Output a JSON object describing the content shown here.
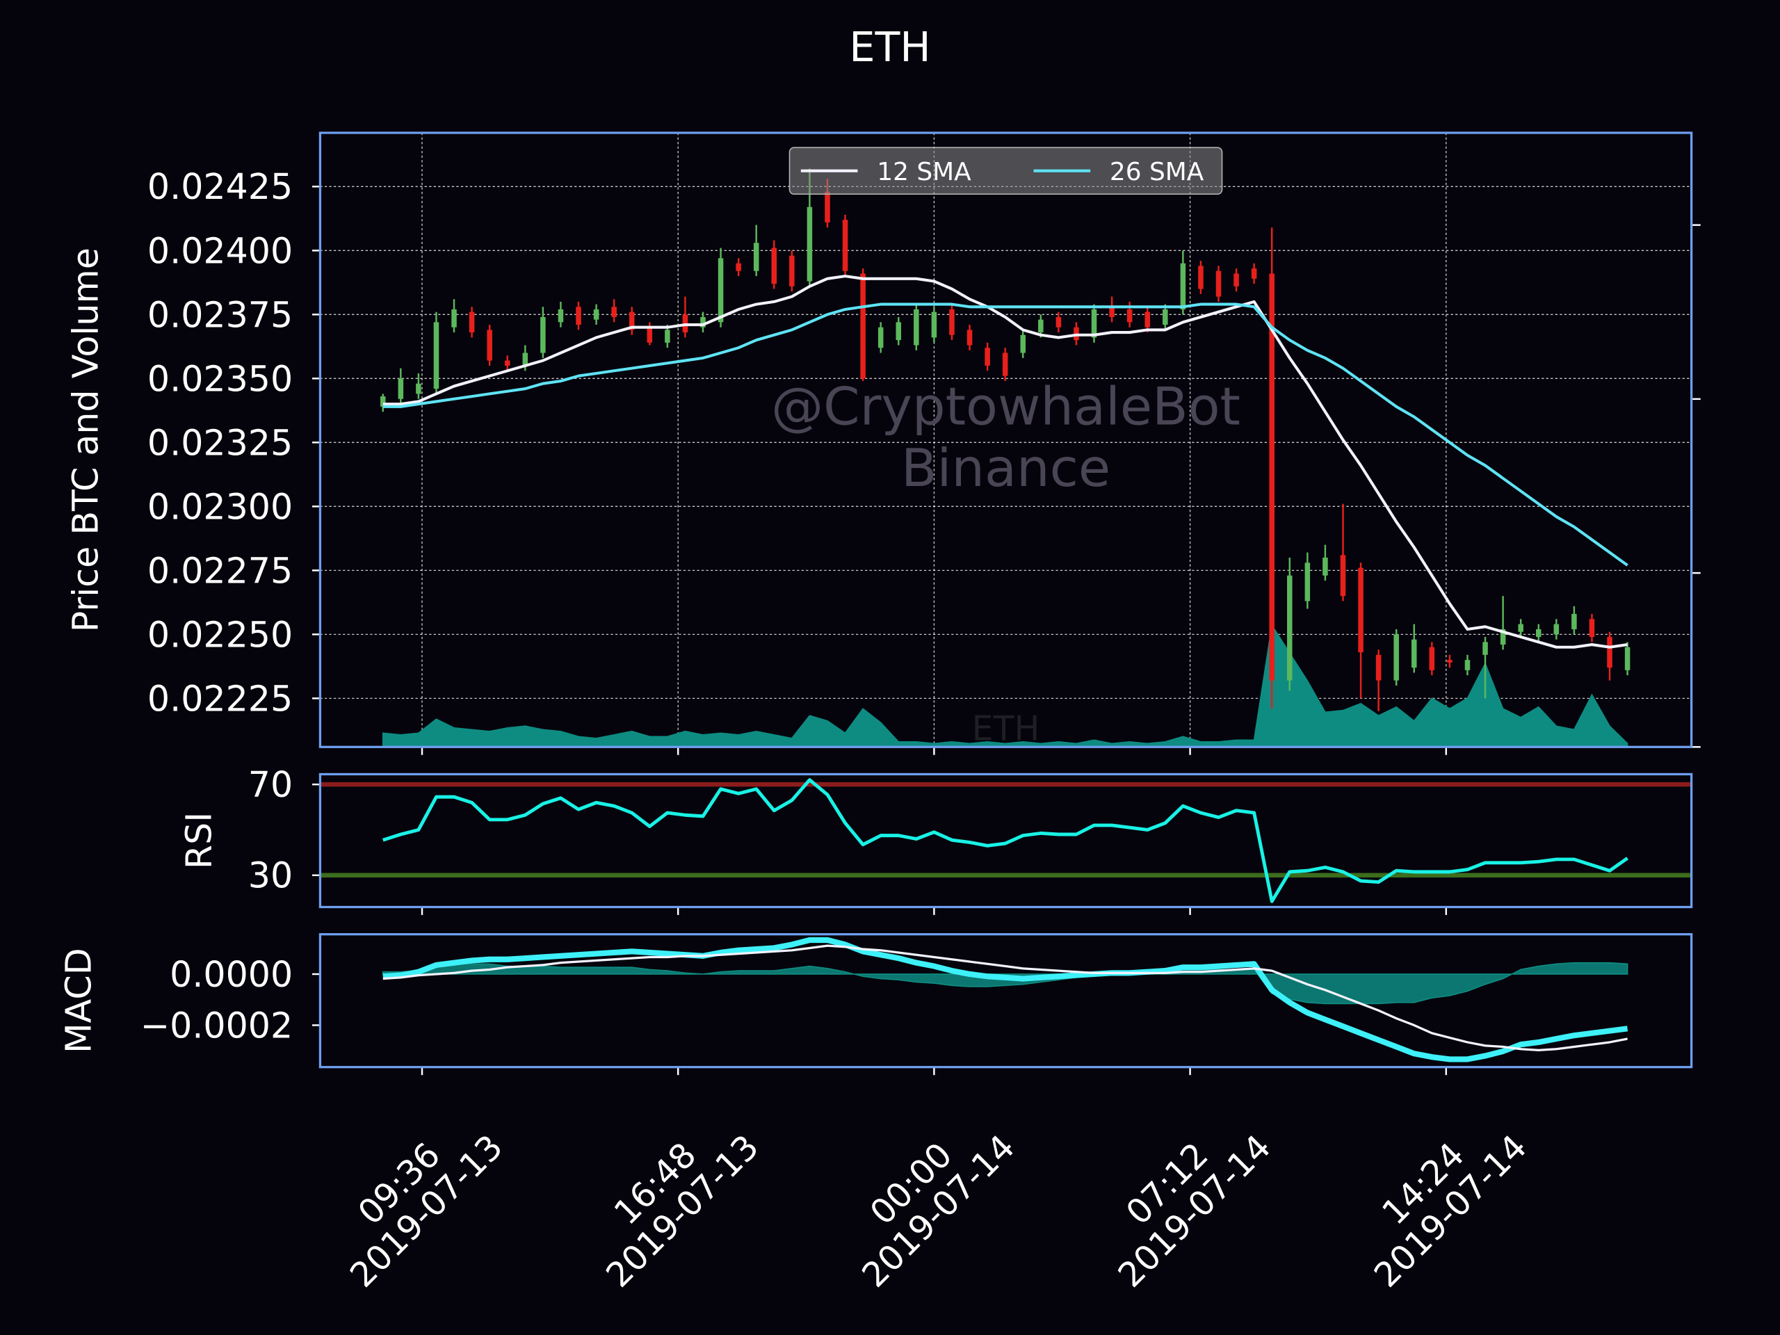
{
  "chart_data": {
    "type": "candlestick",
    "title": "ETH",
    "x": [
      "2019-07-13 08:30",
      "2019-07-13 09:00",
      "2019-07-13 09:30",
      "2019-07-13 10:00",
      "2019-07-13 10:30",
      "2019-07-13 11:00",
      "2019-07-13 11:30",
      "2019-07-13 12:00",
      "2019-07-13 12:30",
      "2019-07-13 13:00",
      "2019-07-13 13:30",
      "2019-07-13 14:00",
      "2019-07-13 14:30",
      "2019-07-13 15:00",
      "2019-07-13 15:30",
      "2019-07-13 16:00",
      "2019-07-13 16:30",
      "2019-07-13 17:00",
      "2019-07-13 17:30",
      "2019-07-13 18:00",
      "2019-07-13 18:30",
      "2019-07-13 19:00",
      "2019-07-13 19:30",
      "2019-07-13 20:00",
      "2019-07-13 20:30",
      "2019-07-13 21:00",
      "2019-07-13 21:30",
      "2019-07-13 22:00",
      "2019-07-13 22:30",
      "2019-07-13 23:00",
      "2019-07-13 23:30",
      "2019-07-14 00:00",
      "2019-07-14 00:30",
      "2019-07-14 01:00",
      "2019-07-14 01:30",
      "2019-07-14 02:00",
      "2019-07-14 02:30",
      "2019-07-14 03:00",
      "2019-07-14 03:30",
      "2019-07-14 04:00",
      "2019-07-14 04:30",
      "2019-07-14 05:00",
      "2019-07-14 05:30",
      "2019-07-14 06:00",
      "2019-07-14 06:30",
      "2019-07-14 07:00",
      "2019-07-14 07:30",
      "2019-07-14 08:00",
      "2019-07-14 08:30",
      "2019-07-14 09:00",
      "2019-07-14 09:30",
      "2019-07-14 10:00",
      "2019-07-14 10:30",
      "2019-07-14 11:00",
      "2019-07-14 11:30",
      "2019-07-14 12:00",
      "2019-07-14 12:30",
      "2019-07-14 13:00",
      "2019-07-14 13:30",
      "2019-07-14 14:00",
      "2019-07-14 14:30",
      "2019-07-14 15:00",
      "2019-07-14 15:30",
      "2019-07-14 16:00",
      "2019-07-14 16:30",
      "2019-07-14 17:00",
      "2019-07-14 17:30",
      "2019-07-14 18:00",
      "2019-07-14 18:30",
      "2019-07-14 19:00",
      "2019-07-14 19:30"
    ],
    "xlim": [
      "2019-07-13 06:44",
      "2019-07-14 21:18"
    ],
    "xticks": [
      {
        "value": "2019-07-13 09:36",
        "label": [
          "09:36",
          "2019-07-13"
        ]
      },
      {
        "value": "2019-07-13 16:48",
        "label": [
          "16:48",
          "2019-07-13"
        ]
      },
      {
        "value": "2019-07-14 00:00",
        "label": [
          "00:00",
          "2019-07-14"
        ]
      },
      {
        "value": "2019-07-14 07:12",
        "label": [
          "07:12",
          "2019-07-14"
        ]
      },
      {
        "value": "2019-07-14 14:24",
        "label": [
          "14:24",
          "2019-07-14"
        ]
      }
    ],
    "watermark": [
      "@CryptowhaleBot",
      "Binance"
    ],
    "price": {
      "ylabel": "Price BTC and Volume",
      "ylim": [
        0.02206,
        0.02446
      ],
      "yticks": [
        0.02225,
        {
          "value": 0.0225,
          "label": "0.02250"
        },
        0.02275,
        {
          "value": 0.023,
          "label": "0.02300"
        },
        0.02325,
        {
          "value": 0.0235,
          "label": "0.02350"
        },
        0.02375,
        {
          "value": 0.024,
          "label": "0.02400"
        },
        0.02425
      ],
      "grid": true,
      "up_color": "#5cb85c",
      "down_color": "#e8201c",
      "open": [
        0.02339,
        0.02342,
        0.02344,
        0.02346,
        0.0237,
        0.02376,
        0.02369,
        0.02357,
        0.02355,
        0.0236,
        0.02372,
        0.02378,
        0.02373,
        0.02378,
        0.02376,
        0.0237,
        0.02364,
        0.02375,
        0.0237,
        0.02372,
        0.02395,
        0.02392,
        0.02401,
        0.02398,
        0.02388,
        0.02423,
        0.02412,
        0.02391,
        0.02362,
        0.02365,
        0.02363,
        0.02366,
        0.02377,
        0.02369,
        0.02362,
        0.0236,
        0.0236,
        0.02368,
        0.02374,
        0.0237,
        0.02366,
        0.02378,
        0.02377,
        0.02376,
        0.02371,
        0.02377,
        0.02394,
        0.02392,
        0.02391,
        0.02393,
        0.02391,
        0.02232,
        0.02263,
        0.02273,
        0.02281,
        0.02276,
        0.02242,
        0.02232,
        0.02237,
        0.02245,
        0.0224,
        0.02236,
        0.02242,
        0.02246,
        0.02251,
        0.02249,
        0.0225,
        0.02252,
        0.02256,
        0.02249,
        0.02236
      ],
      "high": [
        0.02344,
        0.02354,
        0.02352,
        0.02376,
        0.02381,
        0.02378,
        0.02371,
        0.02359,
        0.02363,
        0.02378,
        0.0238,
        0.0238,
        0.02379,
        0.02381,
        0.02378,
        0.02372,
        0.02371,
        0.02382,
        0.02376,
        0.02401,
        0.02397,
        0.0241,
        0.02404,
        0.024,
        0.02432,
        0.02428,
        0.02414,
        0.02393,
        0.02372,
        0.02374,
        0.02379,
        0.02378,
        0.02379,
        0.02371,
        0.02364,
        0.02362,
        0.02369,
        0.02375,
        0.02376,
        0.02372,
        0.02379,
        0.02382,
        0.0238,
        0.02378,
        0.02379,
        0.024,
        0.02396,
        0.02394,
        0.02393,
        0.02395,
        0.02409,
        0.0228,
        0.02282,
        0.02285,
        0.02301,
        0.02278,
        0.02244,
        0.02252,
        0.02254,
        0.02247,
        0.02242,
        0.02242,
        0.02249,
        0.02265,
        0.02256,
        0.02254,
        0.02256,
        0.02261,
        0.02258,
        0.02251,
        0.02247
      ],
      "low": [
        0.02337,
        0.0234,
        0.02342,
        0.02344,
        0.02368,
        0.02366,
        0.02355,
        0.02353,
        0.02353,
        0.02358,
        0.0237,
        0.02369,
        0.02371,
        0.02372,
        0.02367,
        0.02363,
        0.02362,
        0.02366,
        0.02368,
        0.0237,
        0.0239,
        0.0239,
        0.02385,
        0.02384,
        0.02386,
        0.02409,
        0.0239,
        0.02349,
        0.0236,
        0.02363,
        0.02361,
        0.02364,
        0.02365,
        0.02361,
        0.02353,
        0.02349,
        0.02358,
        0.02366,
        0.02368,
        0.02363,
        0.02364,
        0.02372,
        0.0237,
        0.02368,
        0.02369,
        0.02375,
        0.02383,
        0.0238,
        0.02384,
        0.02387,
        0.02221,
        0.02228,
        0.0226,
        0.02271,
        0.02263,
        0.02225,
        0.0222,
        0.0223,
        0.02235,
        0.02234,
        0.02237,
        0.02234,
        0.02225,
        0.02244,
        0.02249,
        0.02247,
        0.02248,
        0.0225,
        0.02247,
        0.02232,
        0.02234
      ],
      "close": [
        0.02343,
        0.0235,
        0.02348,
        0.02372,
        0.02377,
        0.02368,
        0.02357,
        0.02355,
        0.0236,
        0.02374,
        0.02377,
        0.02371,
        0.02377,
        0.02374,
        0.02369,
        0.02364,
        0.02369,
        0.02368,
        0.02374,
        0.02397,
        0.02392,
        0.02403,
        0.02387,
        0.02386,
        0.02417,
        0.02411,
        0.02392,
        0.0235,
        0.0237,
        0.02372,
        0.02377,
        0.02376,
        0.02367,
        0.02363,
        0.02355,
        0.02351,
        0.02367,
        0.02373,
        0.0237,
        0.02365,
        0.02377,
        0.02374,
        0.02372,
        0.0237,
        0.02377,
        0.02395,
        0.02385,
        0.02382,
        0.02386,
        0.02389,
        0.02232,
        0.02273,
        0.02278,
        0.0228,
        0.02265,
        0.02243,
        0.02232,
        0.0225,
        0.02248,
        0.02236,
        0.02239,
        0.0224,
        0.02247,
        0.02252,
        0.02254,
        0.02252,
        0.02254,
        0.02258,
        0.02249,
        0.02237,
        0.02245
      ],
      "series": [
        {
          "name": "12 SMA",
          "color": "#f2f2ff",
          "values": [
            0.0234,
            0.0234,
            0.02341,
            0.02344,
            0.02347,
            0.02349,
            0.02351,
            0.02353,
            0.02355,
            0.02357,
            0.0236,
            0.02363,
            0.02366,
            0.02368,
            0.0237,
            0.0237,
            0.0237,
            0.02371,
            0.02371,
            0.02374,
            0.02377,
            0.02379,
            0.0238,
            0.02382,
            0.02386,
            0.02389,
            0.0239,
            0.02389,
            0.02389,
            0.02389,
            0.02389,
            0.02388,
            0.02385,
            0.02381,
            0.02378,
            0.02374,
            0.02369,
            0.02367,
            0.02366,
            0.02367,
            0.02367,
            0.02368,
            0.02368,
            0.02369,
            0.02369,
            0.02372,
            0.02374,
            0.02376,
            0.02378,
            0.0238,
            0.02369,
            0.02358,
            0.02348,
            0.02337,
            0.02326,
            0.02316,
            0.02305,
            0.02294,
            0.02284,
            0.02273,
            0.02262,
            0.02252,
            0.02253,
            0.02251,
            0.02249,
            0.02247,
            0.02245,
            0.02245,
            0.02246,
            0.02245,
            0.02246
          ]
        },
        {
          "name": "26 SMA",
          "color": "#5fe3f5",
          "values": [
            0.02339,
            0.02339,
            0.0234,
            0.02341,
            0.02342,
            0.02343,
            0.02344,
            0.02345,
            0.02346,
            0.02348,
            0.02349,
            0.02351,
            0.02352,
            0.02353,
            0.02354,
            0.02355,
            0.02356,
            0.02357,
            0.02358,
            0.0236,
            0.02362,
            0.02365,
            0.02367,
            0.02369,
            0.02372,
            0.02375,
            0.02377,
            0.02378,
            0.02379,
            0.02379,
            0.02379,
            0.02379,
            0.02379,
            0.02378,
            0.02378,
            0.02378,
            0.02378,
            0.02378,
            0.02378,
            0.02378,
            0.02378,
            0.02378,
            0.02378,
            0.02378,
            0.02378,
            0.02378,
            0.02379,
            0.02379,
            0.02379,
            0.02378,
            0.0237,
            0.02365,
            0.02361,
            0.02358,
            0.02354,
            0.02349,
            0.02344,
            0.02339,
            0.02335,
            0.0233,
            0.02325,
            0.0232,
            0.02316,
            0.02311,
            0.02306,
            0.02301,
            0.02296,
            0.02292,
            0.02287,
            0.02282,
            0.02277
          ]
        }
      ],
      "legend": "upper center",
      "volume": {
        "name": "ETH",
        "color": "#0e8c82",
        "axis": "y2",
        "values": [
          0.08,
          0.07,
          0.08,
          0.16,
          0.11,
          0.1,
          0.09,
          0.11,
          0.12,
          0.1,
          0.09,
          0.06,
          0.05,
          0.07,
          0.09,
          0.06,
          0.06,
          0.09,
          0.07,
          0.08,
          0.07,
          0.09,
          0.07,
          0.05,
          0.18,
          0.15,
          0.08,
          0.22,
          0.14,
          0.03,
          0.03,
          0.02,
          0.03,
          0.02,
          0.03,
          0.02,
          0.03,
          0.02,
          0.03,
          0.02,
          0.04,
          0.02,
          0.03,
          0.02,
          0.03,
          0.06,
          0.03,
          0.03,
          0.04,
          0.04,
          0.7,
          0.54,
          0.38,
          0.2,
          0.21,
          0.25,
          0.18,
          0.23,
          0.15,
          0.28,
          0.22,
          0.28,
          0.48,
          0.22,
          0.17,
          0.23,
          0.12,
          0.1,
          0.3,
          0.12,
          0.02
        ]
      },
      "y2lim": [
        0,
        3.53
      ],
      "y2ticks": [
        0,
        1,
        2,
        3
      ]
    },
    "rsi": {
      "ylabel": "RSI",
      "ylim": [
        16,
        74.5
      ],
      "yticks": [
        30,
        70
      ],
      "hlines": [
        {
          "value": 70,
          "color": "#8b1c1c"
        },
        {
          "value": 30,
          "color": "#3b6e1c"
        }
      ],
      "series": [
        {
          "color": "#19f2e6",
          "values": [
            45.5,
            48,
            50,
            64.5,
            64.5,
            62,
            54.5,
            54.5,
            56.5,
            61.5,
            64,
            59,
            62,
            60.5,
            57.5,
            51.5,
            57.5,
            56.5,
            56,
            68,
            66,
            68,
            58.5,
            63,
            72,
            65.5,
            53,
            43.5,
            47.5,
            47.5,
            46,
            49,
            45.5,
            44.5,
            43,
            44,
            47.5,
            48.5,
            48,
            48,
            52,
            52,
            51,
            50,
            53,
            60.5,
            57.5,
            55.5,
            58.5,
            57.5,
            18.5,
            31.5,
            32,
            33.5,
            31.5,
            27.5,
            27,
            32,
            31.5,
            31.5,
            31.5,
            32.5,
            35.5,
            35.5,
            35.5,
            36,
            37,
            37,
            34.5,
            32,
            37.5
          ]
        }
      ]
    },
    "macd": {
      "ylabel": "MACD",
      "ylim": [
        -0.000364,
        0.000156
      ],
      "yticks": [
        {
          "value": 0,
          "label": "0.0000"
        },
        {
          "value": -0.0002,
          "label": "−0.0002"
        }
      ],
      "series": [
        {
          "color": "#3ef0f8",
          "values": [
            -8.9e-06,
            -4.4e-06,
            8.9e-06,
            3.56e-05,
            4.44e-05,
            5.33e-05,
            5.78e-05,
            5.78e-05,
            6.22e-05,
            6.67e-05,
            7.11e-05,
            7.56e-05,
            8e-05,
            8.44e-05,
            8.89e-05,
            8.44e-05,
            8e-05,
            7.56e-05,
            7.11e-05,
            8.44e-05,
            9.33e-05,
            9.78e-05,
            0.0001022,
            0.0001156,
            0.0001333,
            0.0001333,
            0.0001156,
            8.89e-05,
            7.56e-05,
            6.22e-05,
            4.44e-05,
            3.11e-05,
            1.33e-05,
            0,
            -8.9e-06,
            -1.33e-05,
            -1.78e-05,
            -1.33e-05,
            -8.9e-06,
            -4.4e-06,
            0,
            4.4e-06,
            4.4e-06,
            8.9e-06,
            1.33e-05,
            2.67e-05,
            2.67e-05,
            3.11e-05,
            3.56e-05,
            4e-05,
            -6.22e-05,
            -0.0001111,
            -0.0001511,
            -0.0001778,
            -0.0002044,
            -0.0002311,
            -0.0002578,
            -0.0002844,
            -0.0003111,
            -0.0003244,
            -0.0003333,
            -0.0003333,
            -0.00032,
            -0.0003022,
            -0.0002756,
            -0.0002667,
            -0.0002533,
            -0.00024,
            -0.0002311,
            -0.0002222,
            -0.0002133
          ]
        },
        {
          "color": "#f2f2ff",
          "values": [
            -1.78e-05,
            -1.33e-05,
            -4.4e-06,
            0,
            4.4e-06,
            1.33e-05,
            1.78e-05,
            2.67e-05,
            3.11e-05,
            3.56e-05,
            4.44e-05,
            4.89e-05,
            5.33e-05,
            5.78e-05,
            6.22e-05,
            6.67e-05,
            6.67e-05,
            7.11e-05,
            7.11e-05,
            7.56e-05,
            8e-05,
            8.44e-05,
            8.89e-05,
            9.33e-05,
            0.0001022,
            0.0001111,
            0.0001067,
            9.78e-05,
            9.33e-05,
            8.44e-05,
            7.56e-05,
            6.67e-05,
            5.78e-05,
            4.89e-05,
            4e-05,
            3.11e-05,
            2.22e-05,
            1.78e-05,
            1.33e-05,
            8.9e-06,
            4.4e-06,
            4.4e-06,
            4.4e-06,
            4.4e-06,
            4.4e-06,
            8.9e-06,
            8.9e-06,
            1.33e-05,
            1.78e-05,
            2.22e-05,
            1.33e-05,
            -1.33e-05,
            -4e-05,
            -6.22e-05,
            -8.89e-05,
            -0.0001156,
            -0.0001422,
            -0.0001733,
            -0.0002,
            -0.0002311,
            -0.0002489,
            -0.0002667,
            -0.00028,
            -0.0002844,
            -0.0002933,
            -0.0002978,
            -0.0002933,
            -0.0002844,
            -0.0002756,
            -0.0002667,
            -0.0002533
          ]
        }
      ],
      "histogram": {
        "color": "#0e8c82",
        "values": [
          8.9e-06,
          8.9e-06,
          1.33e-05,
          3.56e-05,
          4e-05,
          4e-05,
          4e-05,
          3.11e-05,
          3.11e-05,
          3.11e-05,
          2.67e-05,
          2.67e-05,
          2.67e-05,
          2.67e-05,
          2.67e-05,
          1.78e-05,
          1.33e-05,
          4.4e-06,
          0,
          8.9e-06,
          1.33e-05,
          1.33e-05,
          1.33e-05,
          2.22e-05,
          3.11e-05,
          2.22e-05,
          8.9e-06,
          -8.9e-06,
          -1.78e-05,
          -2.22e-05,
          -3.11e-05,
          -3.56e-05,
          -4.44e-05,
          -4.89e-05,
          -4.89e-05,
          -4.44e-05,
          -4e-05,
          -3.11e-05,
          -2.22e-05,
          -1.33e-05,
          -4.4e-06,
          0,
          0,
          4.4e-06,
          8.9e-06,
          1.78e-05,
          1.78e-05,
          1.78e-05,
          1.78e-05,
          1.78e-05,
          -7.56e-05,
          -9.78e-05,
          -0.0001111,
          -0.0001156,
          -0.0001156,
          -0.0001156,
          -0.0001156,
          -0.0001111,
          -0.0001111,
          -9.33e-05,
          -8.44e-05,
          -6.67e-05,
          -4e-05,
          -1.78e-05,
          1.78e-05,
          3.11e-05,
          4e-05,
          4.44e-05,
          4.44e-05,
          4.44e-05,
          4e-05
        ]
      }
    }
  }
}
